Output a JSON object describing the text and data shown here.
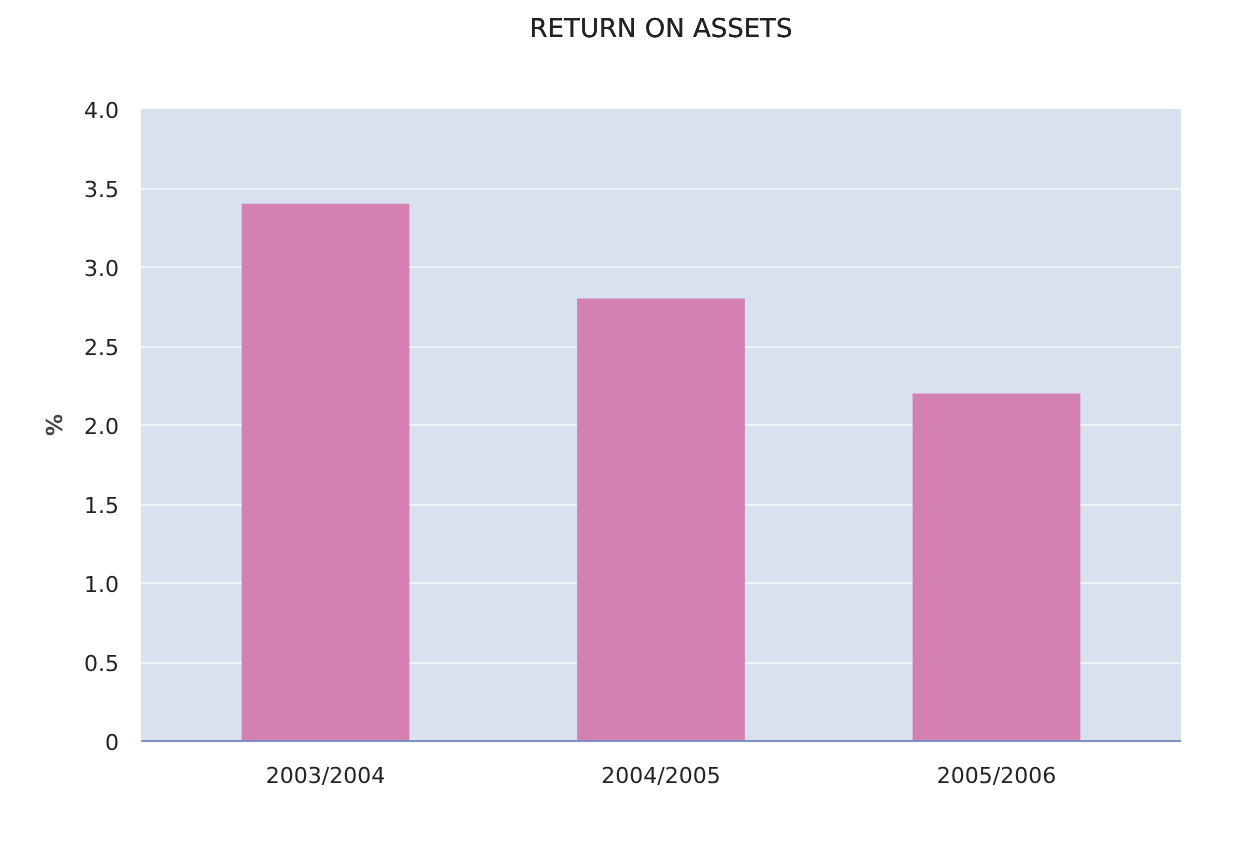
{
  "chart_data": {
    "type": "bar",
    "title": "RETURN ON ASSETS",
    "ylabel": "%",
    "categories": [
      "2003/2004",
      "2004/2005",
      "2005/2006"
    ],
    "values": [
      3.4,
      2.8,
      2.2
    ],
    "color": "#d480b2",
    "ylim": [
      0,
      4
    ],
    "yticks": [
      0,
      {
        "value": 0.5,
        "label": "0.5"
      },
      {
        "value": 1,
        "label": "1.0"
      },
      {
        "value": 1.5,
        "label": "1.5"
      },
      {
        "value": 2,
        "label": "2.0"
      },
      {
        "value": 2.5,
        "label": "2.5"
      },
      {
        "value": 3,
        "label": "3.0"
      },
      {
        "value": 3.5,
        "label": "3.5"
      },
      {
        "value": 4,
        "label": "4.0"
      }
    ],
    "grid": "y"
  }
}
